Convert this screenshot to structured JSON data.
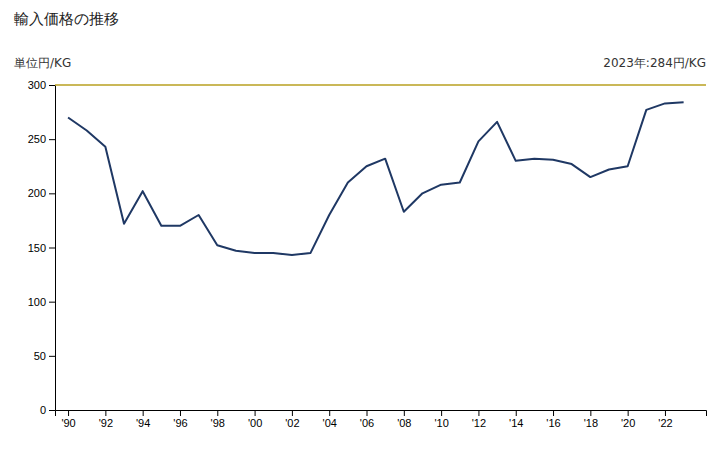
{
  "chart_data": {
    "type": "line",
    "title": "輸入価格の推移",
    "y_label": "単位円/KG",
    "annotation": "2023年:284円/KG",
    "x": [
      1990,
      1991,
      1992,
      1993,
      1994,
      1995,
      1996,
      1997,
      1998,
      1999,
      2000,
      2001,
      2002,
      2003,
      2004,
      2005,
      2006,
      2007,
      2008,
      2009,
      2010,
      2011,
      2012,
      2013,
      2014,
      2015,
      2016,
      2017,
      2018,
      2019,
      2020,
      2021,
      2022,
      2023
    ],
    "values": [
      270,
      258,
      243,
      172,
      202,
      170,
      170,
      180,
      152,
      147,
      145,
      145,
      143,
      145,
      180,
      210,
      225,
      232,
      183,
      200,
      208,
      210,
      248,
      266,
      230,
      232,
      231,
      227,
      215,
      222,
      225,
      277,
      283,
      284
    ],
    "color": "#1f3864",
    "xlim": [
      1989.3,
      2024.2
    ],
    "xticks": [
      {
        "value": 1990,
        "label": "'90"
      },
      {
        "value": 1992,
        "label": "'92"
      },
      {
        "value": 1994,
        "label": "'94"
      },
      {
        "value": 1996,
        "label": "'96"
      },
      {
        "value": 1998,
        "label": "'98"
      },
      {
        "value": 2000,
        "label": "'00"
      },
      {
        "value": 2002,
        "label": "'02"
      },
      {
        "value": 2004,
        "label": "'04"
      },
      {
        "value": 2006,
        "label": "'06"
      },
      {
        "value": 2008,
        "label": "'08"
      },
      {
        "value": 2010,
        "label": "'10"
      },
      {
        "value": 2012,
        "label": "'12"
      },
      {
        "value": 2014,
        "label": "'14"
      },
      {
        "value": 2016,
        "label": "'16"
      },
      {
        "value": 2018,
        "label": "'18"
      },
      {
        "value": 2020,
        "label": "'20"
      },
      {
        "value": 2022,
        "label": "'22"
      }
    ],
    "ylim": [
      0,
      300
    ],
    "yticks": [
      0,
      50,
      100,
      150,
      200,
      250,
      300
    ],
    "hline": {
      "value": 300,
      "color": "#b8a020"
    },
    "grid": false
  }
}
